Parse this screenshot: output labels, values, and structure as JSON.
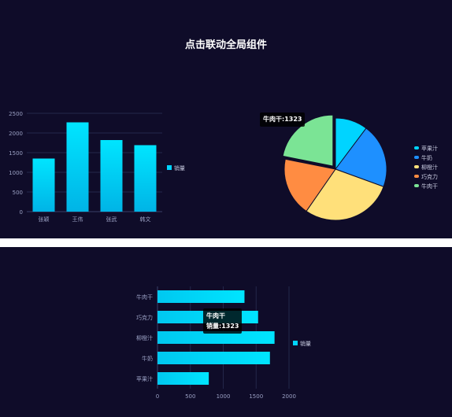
{
  "page": {
    "title": "点击联动全局组件"
  },
  "chart_data": [
    {
      "type": "bar",
      "orientation": "vertical",
      "categories": [
        "张颖",
        "王伟",
        "张武",
        "韩文"
      ],
      "series": [
        {
          "name": "销量",
          "values": [
            1350,
            2270,
            1820,
            1690
          ]
        }
      ],
      "ylim": [
        0,
        2500
      ],
      "yticks": [
        "0",
        "500",
        "1000",
        "1500",
        "2000",
        "2500"
      ],
      "legend_position": "right",
      "grid": true
    },
    {
      "type": "pie",
      "categories": [
        "苹果汁",
        "牛奶",
        "柳橙汁",
        "巧克力",
        "牛肉干"
      ],
      "values": [
        620,
        1230,
        1760,
        1120,
        1323
      ],
      "colors": [
        "#00d4ff",
        "#1e90ff",
        "#ffe07a",
        "#ff8c42",
        "#7be495"
      ],
      "legend_position": "right",
      "highlighted": "牛肉干",
      "tooltip": {
        "label": "牛肉干",
        "value": "1323"
      }
    },
    {
      "type": "bar",
      "orientation": "horizontal",
      "categories": [
        "苹果汁",
        "牛奶",
        "柳橙汁",
        "巧克力",
        "牛肉干"
      ],
      "series": [
        {
          "name": "销量",
          "values": [
            780,
            1710,
            1780,
            1530,
            1323
          ]
        }
      ],
      "xlim": [
        0,
        2000
      ],
      "xticks": [
        "0",
        "500",
        "1000",
        "1500",
        "2000"
      ],
      "legend_position": "right",
      "grid": true,
      "tooltip": {
        "title": "牛肉干",
        "series": "销量",
        "value": "1323"
      }
    }
  ]
}
